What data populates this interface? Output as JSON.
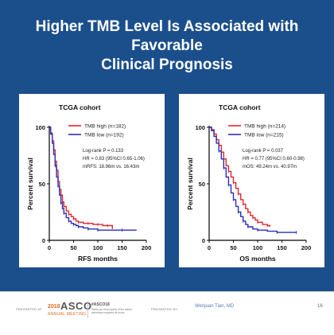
{
  "slide": {
    "title_line1": "Higher TMB Level Is Associated with Favorable",
    "title_line2": "Clinical Prognosis",
    "page_number": "16"
  },
  "footer": {
    "presented_at": "PRESENTED AT:",
    "year": "2018",
    "asco": "ASCO",
    "annual_meeting": "ANNUAL MEETING",
    "hashtag": "#ASCO18",
    "note": "Slides are the property of the author, permission required for reuse.",
    "presented_by": "PRESENTED BY:",
    "presenter": "Wenjuan Tian, MD"
  },
  "colors": {
    "background": "#1b4f8c",
    "tmb_high": "#e0282e",
    "tmb_low": "#2a2fb8"
  },
  "chart_data": [
    {
      "type": "line",
      "title": "TCGA cohort",
      "xlabel": "RFS months",
      "ylabel": "Percent survival",
      "xlim": [
        0,
        200
      ],
      "ylim": [
        0,
        100
      ],
      "xticks": [
        0,
        50,
        100,
        150,
        200
      ],
      "yticks": [
        0,
        50,
        100
      ],
      "legend_position": "top-right",
      "annotations": [
        "Log-rank P = 0.133",
        "HR = 0.83 (95%CI 0.65-1.06)",
        "mRFS: 18.96m vs. 16.43m"
      ],
      "series": [
        {
          "name": "TMB high (n=182)",
          "color": "#e0282e",
          "points": [
            [
              0,
              100
            ],
            [
              3,
              95
            ],
            [
              6,
              88
            ],
            [
              9,
              80
            ],
            [
              12,
              70
            ],
            [
              15,
              62
            ],
            [
              18,
              52
            ],
            [
              21,
              45
            ],
            [
              24,
              40
            ],
            [
              27,
              34
            ],
            [
              30,
              30
            ],
            [
              35,
              26
            ],
            [
              40,
              23
            ],
            [
              45,
              21
            ],
            [
              50,
              19
            ],
            [
              55,
              17
            ],
            [
              60,
              16
            ],
            [
              70,
              15
            ],
            [
              80,
              15
            ],
            [
              90,
              14
            ],
            [
              100,
              14
            ],
            [
              110,
              13
            ],
            [
              120,
              13
            ],
            [
              130,
              10
            ]
          ]
        },
        {
          "name": "TMB low (n=192)",
          "color": "#2a2fb8",
          "points": [
            [
              0,
              100
            ],
            [
              3,
              94
            ],
            [
              6,
              86
            ],
            [
              9,
              76
            ],
            [
              12,
              66
            ],
            [
              15,
              56
            ],
            [
              18,
              48
            ],
            [
              21,
              40
            ],
            [
              24,
              33
            ],
            [
              27,
              28
            ],
            [
              30,
              24
            ],
            [
              35,
              20
            ],
            [
              40,
              17
            ],
            [
              45,
              15
            ],
            [
              50,
              14
            ],
            [
              55,
              13
            ],
            [
              60,
              12
            ],
            [
              70,
              11
            ],
            [
              80,
              10
            ],
            [
              90,
              10
            ],
            [
              100,
              9
            ],
            [
              120,
              9
            ],
            [
              150,
              9
            ],
            [
              180,
              9
            ]
          ]
        }
      ]
    },
    {
      "type": "line",
      "title": "TCGA cohort",
      "xlabel": "OS months",
      "ylabel": "Percent survival",
      "xlim": [
        0,
        200
      ],
      "ylim": [
        0,
        100
      ],
      "xticks": [
        0,
        50,
        100,
        150,
        200
      ],
      "yticks": [
        0,
        50,
        100
      ],
      "legend_position": "top-right",
      "annotations": [
        "Log-rank P = 0.037",
        "HR = 0.77 (95%CI 0.60-0.98)",
        "mOS: 49.24m vs. 40.97m"
      ],
      "series": [
        {
          "name": "TMB high (n=214)",
          "color": "#e0282e",
          "points": [
            [
              0,
              100
            ],
            [
              5,
              98
            ],
            [
              10,
              94
            ],
            [
              15,
              89
            ],
            [
              20,
              84
            ],
            [
              25,
              78
            ],
            [
              30,
              72
            ],
            [
              35,
              66
            ],
            [
              40,
              61
            ],
            [
              45,
              56
            ],
            [
              50,
              51
            ],
            [
              55,
              46
            ],
            [
              60,
              41
            ],
            [
              65,
              36
            ],
            [
              70,
              32
            ],
            [
              75,
              28
            ],
            [
              80,
              25
            ],
            [
              85,
              22
            ],
            [
              90,
              20
            ],
            [
              95,
              18
            ],
            [
              100,
              16
            ],
            [
              110,
              14
            ],
            [
              120,
              13
            ],
            [
              125,
              12
            ]
          ]
        },
        {
          "name": "TMB low (n=215)",
          "color": "#2a2fb8",
          "points": [
            [
              0,
              100
            ],
            [
              5,
              97
            ],
            [
              10,
              92
            ],
            [
              15,
              86
            ],
            [
              20,
              79
            ],
            [
              25,
              72
            ],
            [
              30,
              64
            ],
            [
              35,
              56
            ],
            [
              40,
              49
            ],
            [
              45,
              42
            ],
            [
              50,
              36
            ],
            [
              55,
              30
            ],
            [
              60,
              25
            ],
            [
              65,
              21
            ],
            [
              70,
              17
            ],
            [
              75,
              14
            ],
            [
              80,
              12
            ],
            [
              90,
              10
            ],
            [
              100,
              9
            ],
            [
              120,
              8
            ],
            [
              140,
              7
            ],
            [
              160,
              7
            ],
            [
              180,
              7
            ]
          ]
        }
      ]
    }
  ]
}
